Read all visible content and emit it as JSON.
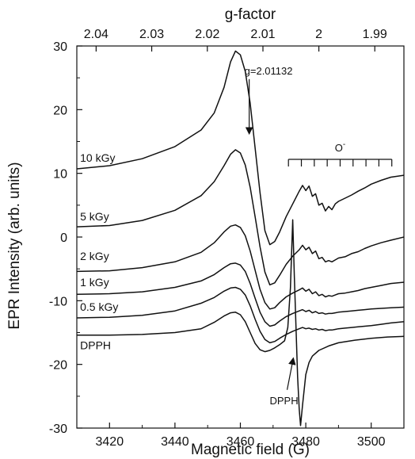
{
  "chart_data": {
    "type": "line",
    "title": "",
    "xlabel": "Magnetic field (G)",
    "ylabel": "EPR Intensity (arb. units)",
    "x2label": "g-factor",
    "xlim": [
      3410,
      3510
    ],
    "ylim": [
      -30,
      30
    ],
    "x_ticks": [
      3420,
      3440,
      3460,
      3480,
      3500
    ],
    "y_ticks": [
      -30,
      -20,
      -10,
      0,
      10,
      20,
      30
    ],
    "top_ticks": [
      {
        "label": "2.04",
        "x": 3415.9
      },
      {
        "label": "2.03",
        "x": 3432.9
      },
      {
        "label": "2.02",
        "x": 3449.9
      },
      {
        "label": "2.01",
        "x": 3466.9
      },
      {
        "label": "2",
        "x": 3484.0
      },
      {
        "label": "1.99",
        "x": 3501.1
      }
    ],
    "grid": false,
    "legend": "none",
    "series": [
      {
        "name": "10 kGy",
        "label_at": [
          3411,
          11.8
        ],
        "points": [
          [
            3410,
            10.7
          ],
          [
            3420,
            11.2
          ],
          [
            3430,
            12.3
          ],
          [
            3440,
            14.2
          ],
          [
            3448,
            16.8
          ],
          [
            3452,
            19.5
          ],
          [
            3455,
            23.5
          ],
          [
            3457,
            27.5
          ],
          [
            3458.5,
            29.2
          ],
          [
            3460,
            28.6
          ],
          [
            3461.5,
            26
          ],
          [
            3463,
            21
          ],
          [
            3464.5,
            14
          ],
          [
            3466,
            7
          ],
          [
            3467.5,
            1
          ],
          [
            3469,
            -1.2
          ],
          [
            3470.5,
            -0.7
          ],
          [
            3472,
            0.8
          ],
          [
            3474,
            3.2
          ],
          [
            3476,
            5.2
          ],
          [
            3478,
            7.2
          ],
          [
            3479,
            8.1
          ],
          [
            3480,
            7.3
          ],
          [
            3481,
            8.0
          ],
          [
            3482,
            6.4
          ],
          [
            3483,
            6.8
          ],
          [
            3484,
            5.0
          ],
          [
            3485,
            5.3
          ],
          [
            3486,
            4.1
          ],
          [
            3487,
            4.8
          ],
          [
            3488,
            4.3
          ],
          [
            3489,
            5.2
          ],
          [
            3490,
            5.6
          ],
          [
            3492,
            6.1
          ],
          [
            3494,
            6.6
          ],
          [
            3496,
            7.2
          ],
          [
            3498,
            7.7
          ],
          [
            3500,
            8.3
          ],
          [
            3503,
            8.9
          ],
          [
            3506,
            9.4
          ],
          [
            3510,
            9.7
          ]
        ]
      },
      {
        "name": "5 kGy",
        "label_at": [
          3411,
          2.6
        ],
        "points": [
          [
            3410,
            1.6
          ],
          [
            3420,
            1.8
          ],
          [
            3430,
            2.6
          ],
          [
            3440,
            4.2
          ],
          [
            3448,
            6.5
          ],
          [
            3452,
            8.7
          ],
          [
            3455,
            11.2
          ],
          [
            3457,
            13
          ],
          [
            3458.5,
            13.7
          ],
          [
            3460,
            13.2
          ],
          [
            3461.5,
            11.3
          ],
          [
            3463,
            7.8
          ],
          [
            3464.5,
            3.2
          ],
          [
            3466,
            -1.5
          ],
          [
            3467.5,
            -5.5
          ],
          [
            3469,
            -7.5
          ],
          [
            3470.5,
            -7.2
          ],
          [
            3472,
            -6
          ],
          [
            3474,
            -4.3
          ],
          [
            3476,
            -3
          ],
          [
            3478,
            -2
          ],
          [
            3479,
            -1.3
          ],
          [
            3480,
            -2
          ],
          [
            3481,
            -1.6
          ],
          [
            3482,
            -2.6
          ],
          [
            3483,
            -2.2
          ],
          [
            3484,
            -3.4
          ],
          [
            3485,
            -3.2
          ],
          [
            3486,
            -3.9
          ],
          [
            3487,
            -3.7
          ],
          [
            3488,
            -3.9
          ],
          [
            3489,
            -3.6
          ],
          [
            3490,
            -3.3
          ],
          [
            3492,
            -3.1
          ],
          [
            3494,
            -2.6
          ],
          [
            3496,
            -2.3
          ],
          [
            3498,
            -1.8
          ],
          [
            3500,
            -1.4
          ],
          [
            3503,
            -0.9
          ],
          [
            3506,
            -0.5
          ],
          [
            3510,
            0
          ]
        ]
      },
      {
        "name": "2 kGy",
        "label_at": [
          3411,
          -3.6
        ],
        "points": [
          [
            3410,
            -5.4
          ],
          [
            3420,
            -5.3
          ],
          [
            3430,
            -4.8
          ],
          [
            3440,
            -3.9
          ],
          [
            3448,
            -2.4
          ],
          [
            3452,
            -0.9
          ],
          [
            3455,
            0.8
          ],
          [
            3457,
            1.7
          ],
          [
            3458.5,
            1.9
          ],
          [
            3460,
            1.5
          ],
          [
            3461.5,
            0.2
          ],
          [
            3463,
            -2.2
          ],
          [
            3464.5,
            -5.2
          ],
          [
            3466,
            -8.2
          ],
          [
            3467.5,
            -10.3
          ],
          [
            3469,
            -11.3
          ],
          [
            3470.5,
            -11.1
          ],
          [
            3472,
            -10.3
          ],
          [
            3474,
            -9.4
          ],
          [
            3476,
            -8.8
          ],
          [
            3478,
            -8.3
          ],
          [
            3479,
            -8
          ],
          [
            3480,
            -8.5
          ],
          [
            3481,
            -8.2
          ],
          [
            3482,
            -8.9
          ],
          [
            3483,
            -8.6
          ],
          [
            3484,
            -9.2
          ],
          [
            3485,
            -9
          ],
          [
            3486,
            -9.4
          ],
          [
            3487,
            -9.2
          ],
          [
            3488,
            -9.3
          ],
          [
            3489,
            -9.1
          ],
          [
            3490,
            -8.9
          ],
          [
            3492,
            -8.8
          ],
          [
            3494,
            -8.6
          ],
          [
            3496,
            -8.4
          ],
          [
            3498,
            -8.1
          ],
          [
            3500,
            -7.9
          ],
          [
            3503,
            -7.6
          ],
          [
            3506,
            -7.3
          ],
          [
            3510,
            -7.1
          ]
        ]
      },
      {
        "name": "1 kGy",
        "label_at": [
          3411,
          -7.7
        ],
        "points": [
          [
            3410,
            -9
          ],
          [
            3420,
            -8.9
          ],
          [
            3430,
            -8.6
          ],
          [
            3440,
            -7.9
          ],
          [
            3448,
            -6.9
          ],
          [
            3452,
            -5.9
          ],
          [
            3455,
            -4.8
          ],
          [
            3457,
            -4.2
          ],
          [
            3458.5,
            -4.1
          ],
          [
            3460,
            -4.4
          ],
          [
            3461.5,
            -5.4
          ],
          [
            3463,
            -7.3
          ],
          [
            3464.5,
            -9.6
          ],
          [
            3466,
            -11.8
          ],
          [
            3467.5,
            -13.3
          ],
          [
            3469,
            -14
          ],
          [
            3470.5,
            -13.8
          ],
          [
            3472,
            -13.2
          ],
          [
            3474,
            -12.5
          ],
          [
            3476,
            -12
          ],
          [
            3478,
            -11.6
          ],
          [
            3479,
            -11.4
          ],
          [
            3480,
            -11.7
          ],
          [
            3481,
            -11.5
          ],
          [
            3482,
            -11.9
          ],
          [
            3483,
            -11.7
          ],
          [
            3484,
            -12
          ],
          [
            3485,
            -11.9
          ],
          [
            3486,
            -12.1
          ],
          [
            3487,
            -12
          ],
          [
            3488,
            -12
          ],
          [
            3489,
            -11.9
          ],
          [
            3490,
            -11.8
          ],
          [
            3492,
            -11.7
          ],
          [
            3494,
            -11.6
          ],
          [
            3496,
            -11.5
          ],
          [
            3498,
            -11.4
          ],
          [
            3500,
            -11.3
          ],
          [
            3503,
            -11.2
          ],
          [
            3506,
            -11.1
          ],
          [
            3510,
            -11
          ]
        ]
      },
      {
        "name": "0.5 kGy",
        "label_at": [
          3411,
          -11.6
        ],
        "points": [
          [
            3410,
            -12.7
          ],
          [
            3420,
            -12.6
          ],
          [
            3430,
            -12.3
          ],
          [
            3440,
            -11.6
          ],
          [
            3448,
            -10.4
          ],
          [
            3452,
            -9.5
          ],
          [
            3455,
            -8.5
          ],
          [
            3457,
            -8
          ],
          [
            3458.5,
            -7.9
          ],
          [
            3460,
            -8.2
          ],
          [
            3461.5,
            -9.1
          ],
          [
            3463,
            -10.8
          ],
          [
            3464.5,
            -12.9
          ],
          [
            3466,
            -14.8
          ],
          [
            3467.5,
            -16.1
          ],
          [
            3469,
            -16.6
          ],
          [
            3470.5,
            -16.4
          ],
          [
            3472,
            -15.9
          ],
          [
            3474,
            -15.3
          ],
          [
            3476,
            -14.8
          ],
          [
            3478,
            -14.4
          ],
          [
            3479,
            -14.2
          ],
          [
            3480,
            -14.4
          ],
          [
            3481,
            -14.3
          ],
          [
            3482,
            -14.5
          ],
          [
            3483,
            -14.4
          ],
          [
            3484,
            -14.6
          ],
          [
            3485,
            -14.5
          ],
          [
            3486,
            -14.7
          ],
          [
            3487,
            -14.6
          ],
          [
            3488,
            -14.6
          ],
          [
            3489,
            -14.5
          ],
          [
            3490,
            -14.4
          ],
          [
            3492,
            -14.3
          ],
          [
            3494,
            -14.2
          ],
          [
            3496,
            -14.1
          ],
          [
            3498,
            -14
          ],
          [
            3500,
            -13.9
          ],
          [
            3503,
            -13.7
          ],
          [
            3506,
            -13.5
          ],
          [
            3510,
            -13.3
          ]
        ]
      },
      {
        "name": "DPPH",
        "label_at": [
          3411,
          -17.6
        ],
        "points": [
          [
            3410,
            -15.4
          ],
          [
            3420,
            -15.4
          ],
          [
            3430,
            -15.3
          ],
          [
            3440,
            -15
          ],
          [
            3448,
            -14.4
          ],
          [
            3452,
            -13.4
          ],
          [
            3455,
            -12.4
          ],
          [
            3457,
            -11.9
          ],
          [
            3458.5,
            -11.8
          ],
          [
            3460,
            -12.2
          ],
          [
            3461.5,
            -13.3
          ],
          [
            3463,
            -15
          ],
          [
            3464.5,
            -16.7
          ],
          [
            3466,
            -17.7
          ],
          [
            3467.5,
            -18
          ],
          [
            3469,
            -17.8
          ],
          [
            3470.5,
            -17.4
          ],
          [
            3472,
            -16.9
          ],
          [
            3473.5,
            -16.3
          ],
          [
            3474.5,
            -14.2
          ],
          [
            3475.3,
            -8
          ],
          [
            3476,
            2.7
          ],
          [
            3476.5,
            -6
          ],
          [
            3477,
            -14
          ],
          [
            3477.5,
            -22
          ],
          [
            3478,
            -27
          ],
          [
            3478.4,
            -29.6
          ],
          [
            3479,
            -26.4
          ],
          [
            3480,
            -21.6
          ],
          [
            3481,
            -19.7
          ],
          [
            3482,
            -18.7
          ],
          [
            3484,
            -17.8
          ],
          [
            3487,
            -17.1
          ],
          [
            3490,
            -16.6
          ],
          [
            3495,
            -16.2
          ],
          [
            3500,
            -15.9
          ],
          [
            3505,
            -15.7
          ],
          [
            3510,
            -15.6
          ]
        ]
      }
    ],
    "annotations": {
      "g_marker": {
        "text": "g=2.01132",
        "arrow_from": [
          3462.7,
          24.8
        ],
        "arrow_to": [
          3462.7,
          16.2
        ]
      },
      "dpph_marker": {
        "text": "DPPH",
        "arrow_from": [
          3474.3,
          -24
        ],
        "arrow_to": [
          3476.2,
          -19
        ]
      },
      "o_minus": {
        "text": "O",
        "superscript": "-",
        "bracket_x": [
          3474.7,
          3506.3
        ],
        "bracket_y": 12.2,
        "tick_count": 9
      }
    }
  }
}
